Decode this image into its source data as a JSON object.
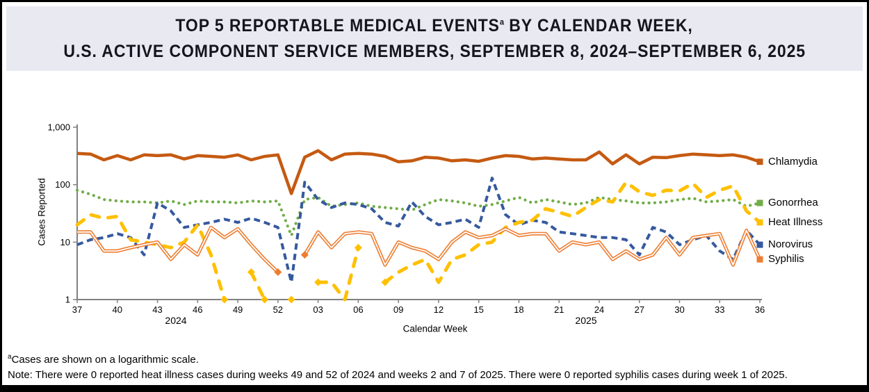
{
  "title": {
    "line1_pre": "TOP 5 REPORTABLE MEDICAL EVENTS",
    "line1_sup": "a",
    "line1_post": " BY CALENDAR WEEK,",
    "line2": "U.S. ACTIVE COMPONENT SERVICE MEMBERS, SEPTEMBER 8, 2024–SEPTEMBER 6, 2025"
  },
  "footnotes": {
    "marker": "a",
    "footnote1": "Cases are shown on a logarithmic scale.",
    "note": "Note: There were 0 reported heat illness cases during weeks 49 and 52 of 2024 and weeks 2 and 7 of 2025. There were 0 reported syphilis cases during week 1 of 2025."
  },
  "colors": {
    "title_band": "#E9E9F2",
    "axis": "#808080",
    "chlamydia": "#C55A11",
    "gonorrhea": "#70AD47",
    "heat_illness": "#FFC000",
    "norovirus": "#35599E",
    "syphilis": "#ED7D31"
  },
  "chart_data": {
    "type": "line",
    "xlabel": "Calendar Week",
    "ylabel": "Cases Reported",
    "y_scale": "log",
    "ylim": [
      1,
      1000
    ],
    "y_ticks": [
      1,
      10,
      100,
      1000
    ],
    "y_tick_labels": [
      "1",
      "10",
      "100",
      "1,000"
    ],
    "x_tick_every": 3,
    "grid": "off",
    "legend_position": "right-of-line-ends",
    "x_year_labels": [
      {
        "label": "2024"
      },
      {
        "label": "2025"
      }
    ],
    "weeks": [
      "37",
      "38",
      "39",
      "40",
      "41",
      "42",
      "43",
      "44",
      "45",
      "46",
      "47",
      "48",
      "49",
      "50",
      "51",
      "52",
      "01",
      "02",
      "03",
      "04",
      "05",
      "06",
      "07",
      "08",
      "09",
      "10",
      "11",
      "12",
      "13",
      "14",
      "15",
      "16",
      "17",
      "18",
      "19",
      "20",
      "21",
      "22",
      "23",
      "24",
      "25",
      "26",
      "27",
      "28",
      "29",
      "30",
      "31",
      "32",
      "33",
      "34",
      "35",
      "36"
    ],
    "series": [
      {
        "name": "Chlamydia",
        "color": "#C55A11",
        "style": "solid",
        "values": [
          350,
          340,
          270,
          320,
          270,
          330,
          320,
          330,
          280,
          320,
          310,
          300,
          330,
          270,
          310,
          330,
          70,
          300,
          390,
          270,
          340,
          350,
          340,
          310,
          250,
          260,
          300,
          290,
          260,
          270,
          255,
          290,
          320,
          310,
          280,
          290,
          280,
          270,
          270,
          370,
          230,
          330,
          230,
          300,
          295,
          320,
          340,
          330,
          320,
          330,
          300,
          250
        ]
      },
      {
        "name": "Gonorrhea",
        "color": "#70AD47",
        "style": "dotted",
        "values": [
          80,
          68,
          55,
          52,
          50,
          50,
          48,
          52,
          45,
          52,
          50,
          50,
          48,
          52,
          50,
          52,
          13,
          55,
          60,
          42,
          45,
          48,
          42,
          40,
          38,
          36,
          45,
          55,
          52,
          48,
          42,
          45,
          52,
          60,
          48,
          55,
          50,
          45,
          48,
          60,
          55,
          52,
          48,
          48,
          50,
          55,
          58,
          50,
          52,
          55,
          42,
          48
        ]
      },
      {
        "name": "Heat Illness",
        "color": "#FFC000",
        "style": "long-dash",
        "values": [
          20,
          30,
          26,
          28,
          11,
          10,
          9,
          8,
          10,
          20,
          6,
          1,
          null,
          3,
          1,
          null,
          1,
          null,
          2,
          2,
          1,
          8,
          null,
          2,
          3,
          4,
          5,
          2,
          5,
          6,
          9,
          10,
          18,
          22,
          24,
          38,
          33,
          28,
          40,
          55,
          50,
          110,
          75,
          65,
          80,
          78,
          105,
          60,
          80,
          95,
          35,
          22
        ]
      },
      {
        "name": "Norovirus",
        "color": "#35599E",
        "style": "dash",
        "values": [
          9,
          11,
          12,
          14,
          12,
          6,
          48,
          35,
          18,
          20,
          22,
          25,
          22,
          26,
          22,
          18,
          2,
          110,
          55,
          40,
          48,
          45,
          38,
          22,
          19,
          50,
          28,
          20,
          22,
          25,
          18,
          130,
          30,
          20,
          24,
          22,
          15,
          14,
          13,
          12,
          12,
          11,
          6,
          18,
          15,
          9,
          11,
          13,
          7,
          5,
          16,
          9
        ]
      },
      {
        "name": "Syphilis",
        "color": "#ED7D31",
        "style": "double",
        "values": [
          15,
          15,
          7,
          7,
          8,
          9,
          10,
          5,
          9,
          6,
          18,
          12,
          17,
          9,
          5,
          3,
          null,
          6,
          15,
          8,
          14,
          15,
          14,
          4,
          10,
          8,
          7,
          5,
          10,
          15,
          12,
          13,
          17,
          13,
          14,
          14,
          7,
          10,
          9,
          10,
          5,
          7,
          5,
          6,
          12,
          6,
          12,
          13,
          14,
          4,
          16,
          5
        ]
      }
    ]
  }
}
